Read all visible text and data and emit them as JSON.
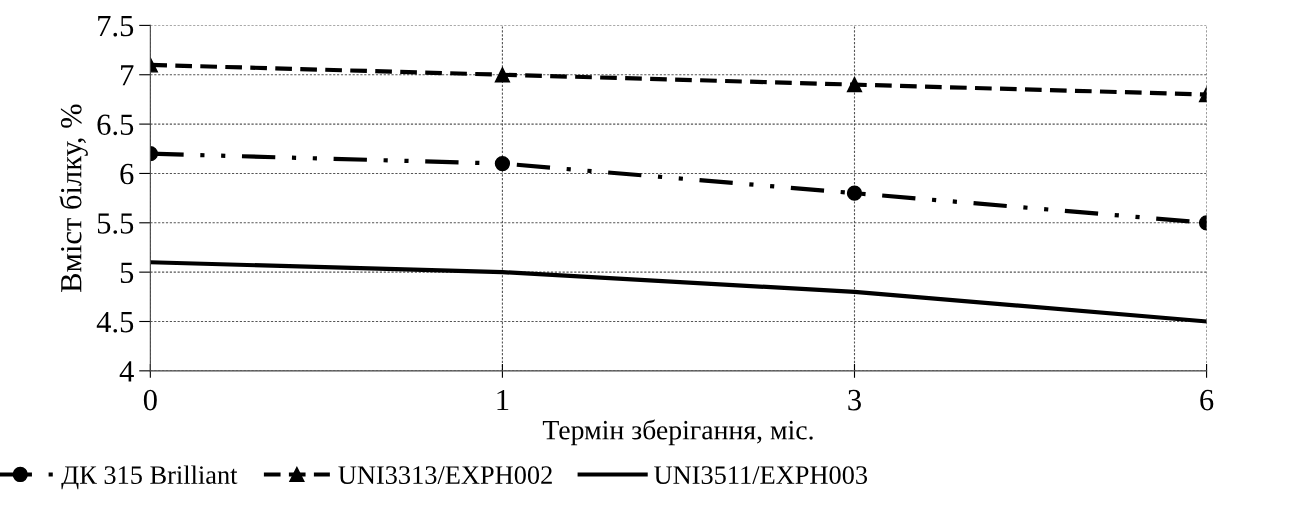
{
  "chart_data": {
    "type": "line",
    "xlabel": "Термін зберігання, міс.",
    "ylabel": "Вміст білку, %",
    "categories": [
      "0",
      "1",
      "3",
      "6"
    ],
    "series": [
      {
        "name": "ДК 315 Brilliant",
        "color": "#000000",
        "marker": "circle",
        "line_style": "dashdot",
        "values": [
          6.2,
          6.1,
          5.8,
          5.5
        ]
      },
      {
        "name": "UNI3313/EXPH002",
        "color": "#000000",
        "marker": "triangle",
        "line_style": "dashed",
        "values": [
          7.1,
          7.0,
          6.9,
          6.8
        ]
      },
      {
        "name": "UNI3511/EXPH003",
        "color": "#000000",
        "marker": "none",
        "line_style": "solid",
        "values": [
          5.1,
          5.0,
          4.8,
          4.5
        ]
      }
    ],
    "ylim": [
      4,
      7.5
    ],
    "yticks": [
      4,
      4.5,
      5,
      5.5,
      6,
      6.5,
      7,
      7.5
    ],
    "grid": true,
    "legend": "bottom"
  }
}
